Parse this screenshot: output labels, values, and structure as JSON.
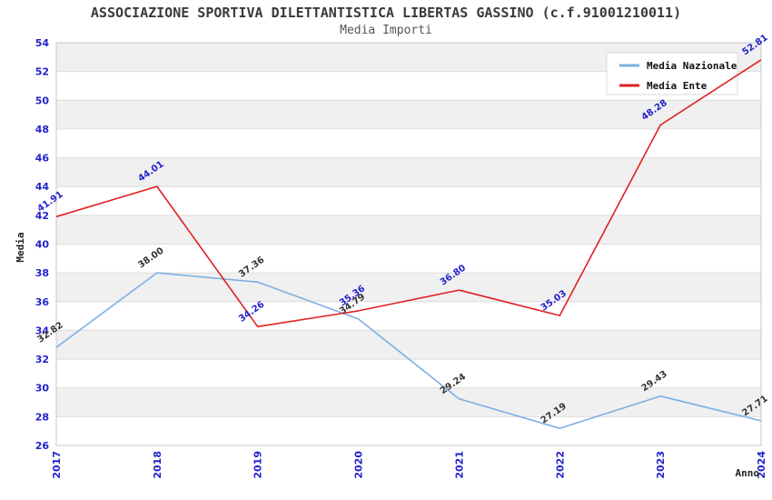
{
  "header": {
    "title": "ASSOCIAZIONE SPORTIVA DILETTANTISTICA LIBERTAS GASSINO (c.f.91001210011)",
    "subtitle": "Media Importi"
  },
  "legend": {
    "position": "top-right",
    "items": [
      {
        "label": "Media Nazionale",
        "color": "#7CB0E4"
      },
      {
        "label": "Media Ente",
        "color": "#E02020"
      }
    ]
  },
  "chart_data": {
    "type": "line",
    "title": "Media Importi",
    "x": [
      "2017",
      "2018",
      "2019",
      "2020",
      "2021",
      "2022",
      "2023",
      "2024"
    ],
    "series": [
      {
        "name": "Media Nazionale",
        "values": [
          32.82,
          38.0,
          37.36,
          34.79,
          29.24,
          27.19,
          29.43,
          27.71
        ],
        "color": "#7CB0E4",
        "label_color": "#333333"
      },
      {
        "name": "Media Ente",
        "values": [
          41.91,
          44.01,
          34.26,
          35.36,
          36.8,
          35.03,
          48.28,
          52.81
        ],
        "color": "#E02020",
        "label_color": "#2222CC"
      }
    ],
    "xlabel": "Anno",
    "ylabel": "Media",
    "ylim": [
      26,
      54
    ],
    "ytick_step": 2,
    "grid": "horizontal-bands",
    "band_color": "#F0F0F0",
    "gridline_color": "#DCDCDC",
    "border_color": "#C8C8C8",
    "tick_color": "#2222CC",
    "legend_position": "top-right"
  }
}
